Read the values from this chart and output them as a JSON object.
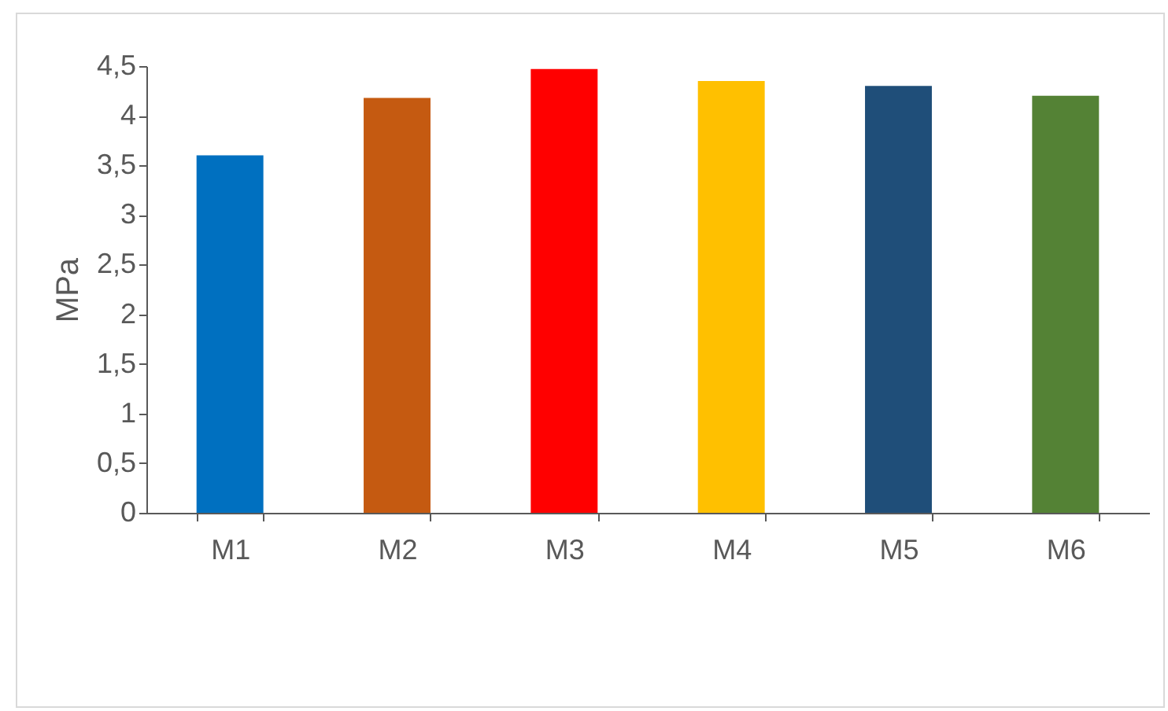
{
  "chart_data": {
    "type": "bar",
    "ylabel": "MPa",
    "categories": [
      "M1",
      "M2",
      "M3",
      "M4",
      "M5",
      "M6"
    ],
    "values": [
      3.6,
      4.18,
      4.47,
      4.35,
      4.3,
      4.2
    ],
    "colors": [
      "#0070c0",
      "#c55a11",
      "#ff0000",
      "#ffc000",
      "#1f4e79",
      "#548235"
    ],
    "ylim": [
      0,
      4.5
    ],
    "yticks": [
      0,
      {
        "value": 0.5,
        "label": "0,5"
      },
      1,
      {
        "value": 1.5,
        "label": "1,5"
      },
      2,
      {
        "value": 2.5,
        "label": "2,5"
      },
      3,
      {
        "value": 3.5,
        "label": "3,5"
      },
      4,
      {
        "value": 4.5,
        "label": "4,5"
      }
    ],
    "grid": false,
    "legend": false
  }
}
